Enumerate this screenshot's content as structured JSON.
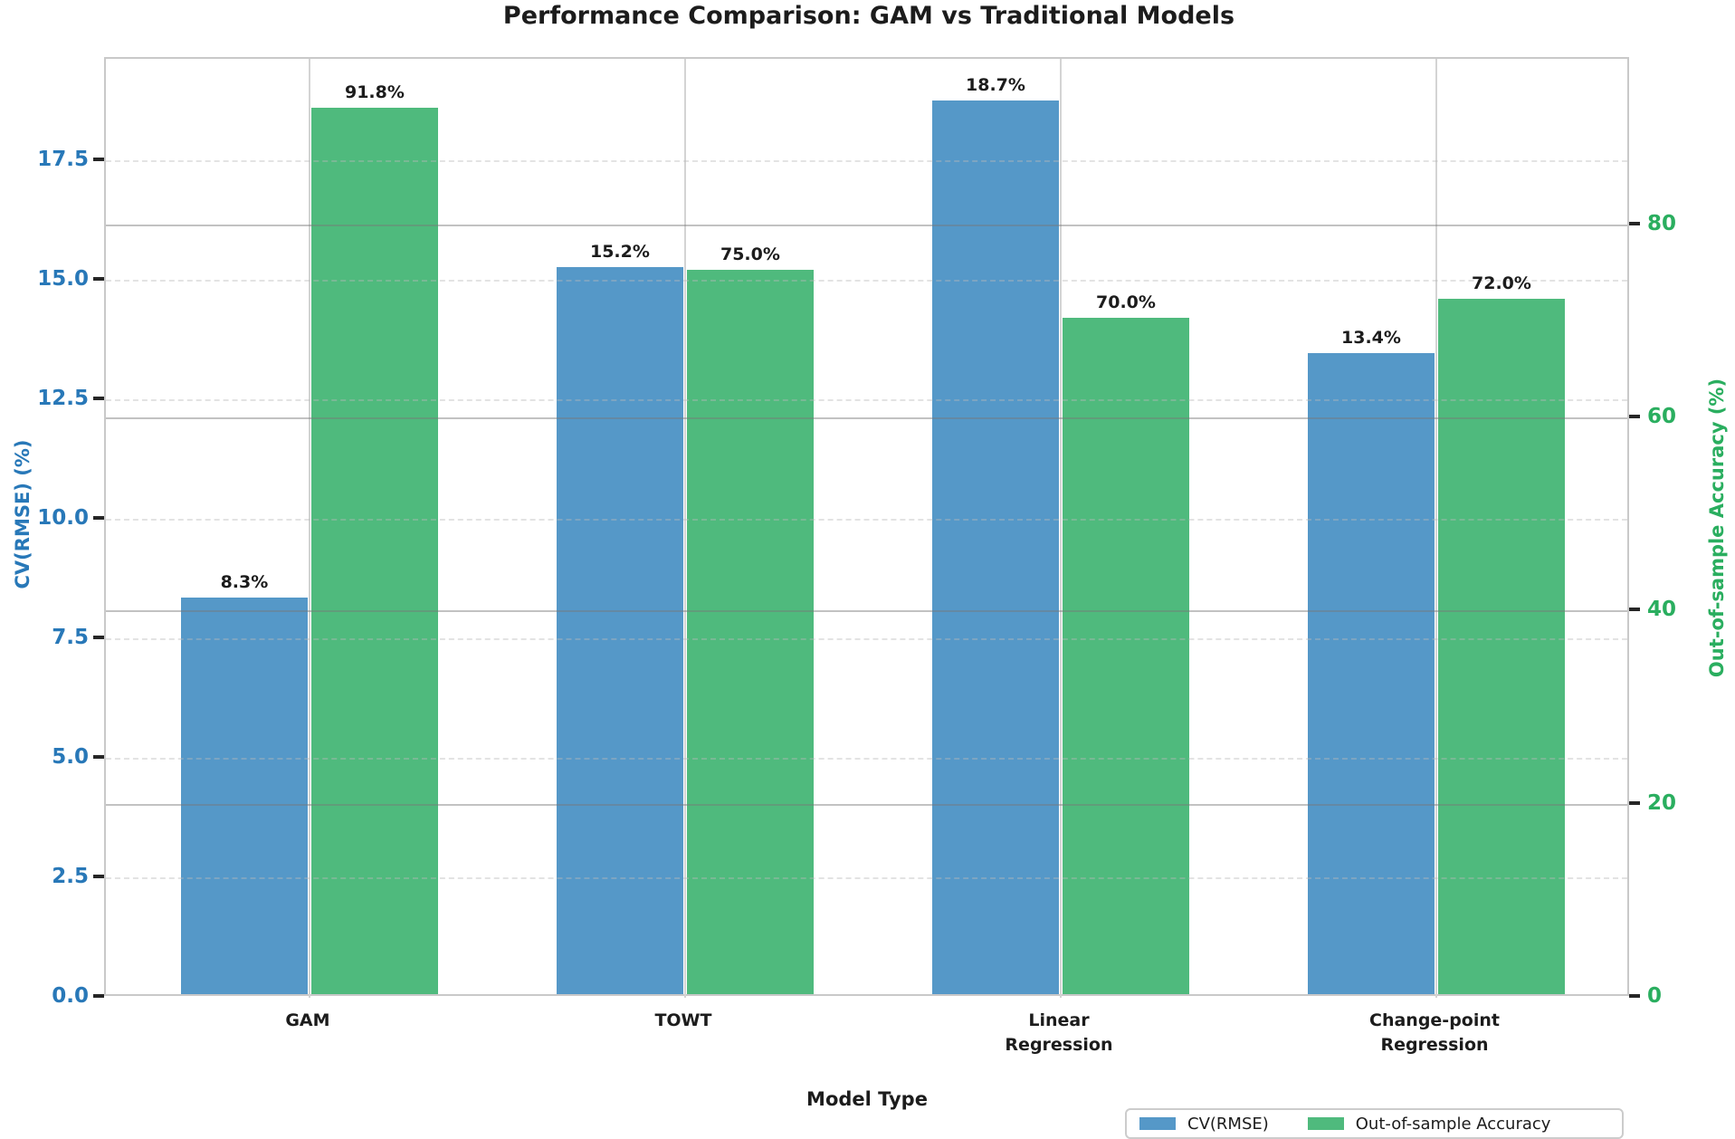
{
  "chart_data": {
    "type": "bar",
    "title": "Performance Comparison: GAM vs Traditional Models",
    "xlabel": "Model Type",
    "categories": [
      "GAM",
      "TOWT",
      "Linear\nRegression",
      "Change-point\nRegression"
    ],
    "series": [
      {
        "name": "CV(RMSE)",
        "axis": "left",
        "color": "#5598C8",
        "values": [
          8.3,
          15.2,
          18.7,
          13.4
        ],
        "value_labels": [
          "8.3%",
          "15.2%",
          "18.7%",
          "13.4%"
        ]
      },
      {
        "name": "Out-of-sample Accuracy",
        "axis": "right",
        "color": "#4FBA7D",
        "values": [
          91.8,
          75.0,
          70.0,
          72.0
        ],
        "value_labels": [
          "91.8%",
          "75.0%",
          "70.0%",
          "72.0%"
        ]
      }
    ],
    "left_axis": {
      "label": "CV(RMSE) (%)",
      "color": "#2878B8",
      "tick_labels": [
        "0.0",
        "2.5",
        "5.0",
        "7.5",
        "10.0",
        "12.5",
        "15.0",
        "17.5"
      ],
      "ticks": [
        0.0,
        2.5,
        5.0,
        7.5,
        10.0,
        12.5,
        15.0,
        17.5
      ],
      "range": [
        0,
        19.64
      ],
      "gridline_style": "dashed"
    },
    "right_axis": {
      "label": "Out-of-sample Accuracy (%)",
      "color": "#2AAE5F",
      "tick_labels": [
        "0",
        "20",
        "40",
        "60",
        "80"
      ],
      "ticks": [
        0,
        20,
        40,
        60,
        80
      ],
      "range": [
        0,
        97.2
      ],
      "gridline_style": "solid"
    },
    "legend": {
      "position": "lower right",
      "entries": [
        "CV(RMSE)",
        "Out-of-sample Accuracy"
      ]
    },
    "grid": {
      "vertical_at_categories": true,
      "horizontal_dashed_at_left_ticks": true,
      "horizontal_solid_at_right_ticks": true
    }
  }
}
